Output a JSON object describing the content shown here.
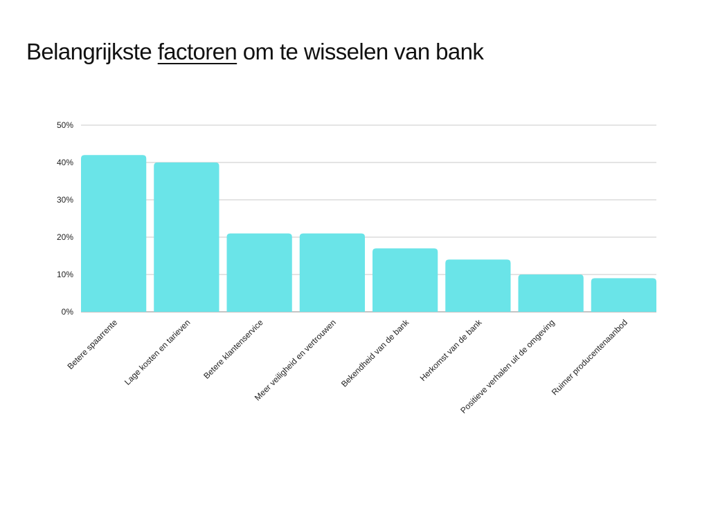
{
  "header": {
    "title_before": "Belangrijkste",
    "title_highlight": "factoren",
    "title_after": "om te wisselen van bank"
  },
  "colors": {
    "bar": "#6ae4e8",
    "grid": "#c8c8c8",
    "axis": "#888888"
  },
  "chart_data": {
    "type": "bar",
    "title": "Belangrijkste factoren om te wisselen van bank",
    "xlabel": "",
    "ylabel": "",
    "categories": [
      "Betere spaarrente",
      "Lage kosten en tarieven",
      "Betere klantenservice",
      "Meer veiligheid en vertrouwen",
      "Bekendheid van de bank",
      "Herkomst van de bank",
      "Positieve verhalen uit de omgeving",
      "Ruimer producentenaanbod"
    ],
    "values": [
      42,
      40,
      21,
      21,
      17,
      14,
      10,
      9
    ],
    "ylim": [
      0,
      50
    ],
    "yticks": [
      0,
      10,
      20,
      30,
      40,
      50
    ],
    "ytick_labels": [
      "0%",
      "10%",
      "20%",
      "30%",
      "40%",
      "50%"
    ],
    "grid": true,
    "legend": "none"
  }
}
